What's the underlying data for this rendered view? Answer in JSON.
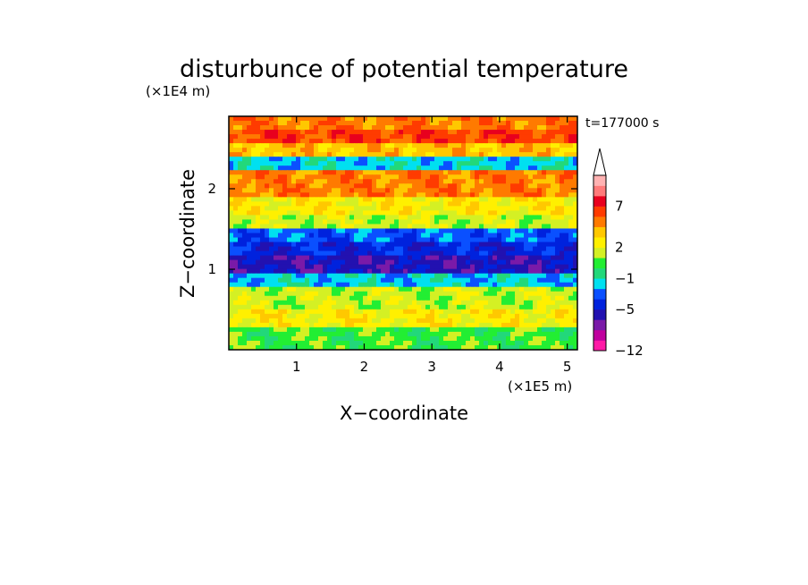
{
  "chart_data": {
    "type": "heatmap",
    "title": "disturbunce of potential temperature",
    "time_label": "t=177000 s",
    "xlabel": "X−coordinate",
    "ylabel": "Z−coordinate",
    "x_unit": "(×1E5 m)",
    "y_unit": "(×1E4 m)",
    "xlim": [
      0,
      5.15
    ],
    "ylim": [
      0,
      2.9
    ],
    "x_ticks": [
      1,
      2,
      3,
      4,
      5
    ],
    "y_ticks": [
      1,
      2
    ],
    "x_tick_labels": [
      "1",
      "2",
      "3",
      "4",
      "5"
    ],
    "y_tick_labels": [
      "1",
      "2"
    ],
    "colorbar": {
      "levels": [
        -12,
        -5,
        -1,
        2,
        7
      ],
      "labels": [
        "−12",
        "−5",
        "−1",
        "2",
        "7"
      ],
      "colors": [
        "#ff1aa6",
        "#c0009e",
        "#7a1aa8",
        "#2211b0",
        "#0022dd",
        "#0a50ff",
        "#00e0f0",
        "#22d87a",
        "#22ee33",
        "#d4f024",
        "#fff000",
        "#ffc800",
        "#ff7a00",
        "#ff3b00",
        "#e8001e",
        "#ff7a7a",
        "#ffb2b2"
      ],
      "extends_top": true
    },
    "grid": false,
    "legend_position": "right"
  }
}
